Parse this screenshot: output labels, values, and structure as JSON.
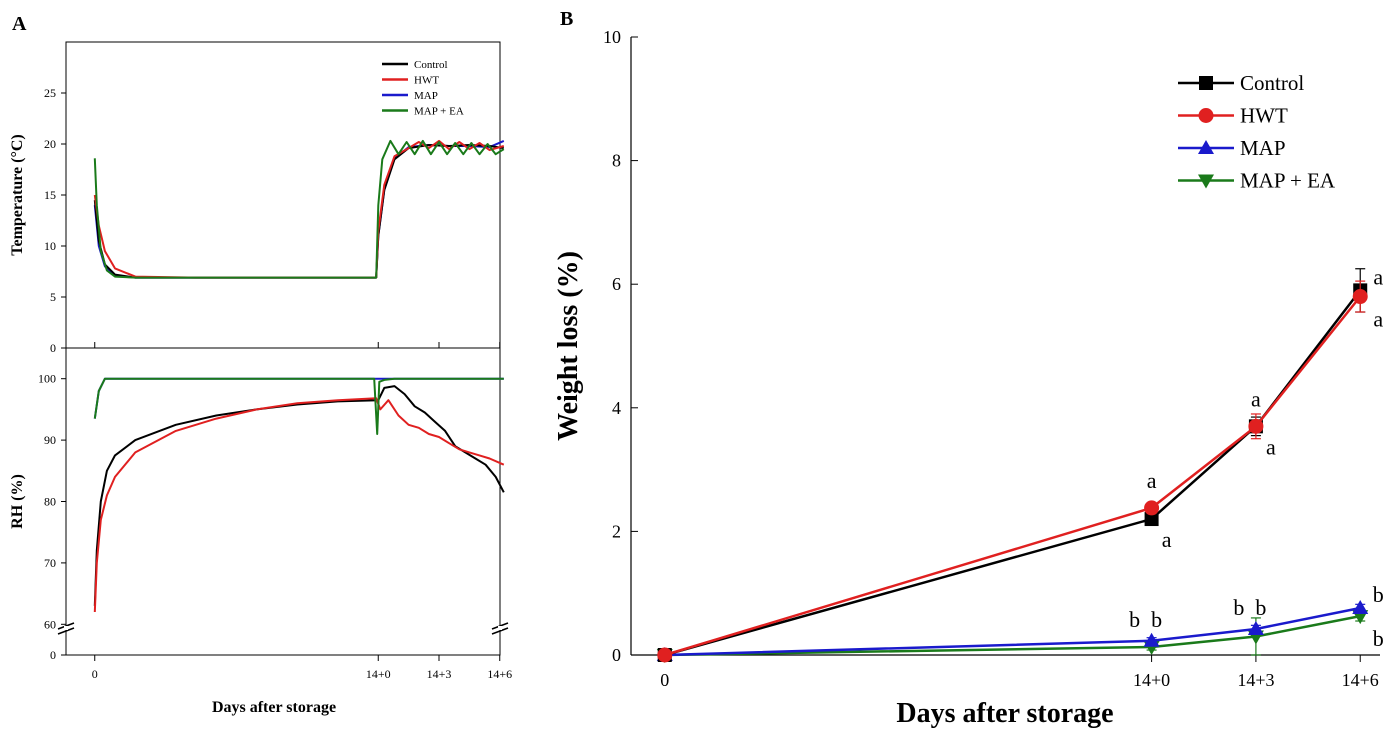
{
  "chart_data": [
    {
      "panel": "A",
      "type": "line",
      "xlabel": "Days after storage",
      "xticks": [
        "0",
        "14+0",
        "14+3",
        "14+6"
      ],
      "x_tick_values": [
        0,
        14,
        17,
        20
      ],
      "xlim": [
        -1,
        21
      ],
      "legend": {
        "placement": "top-right"
      },
      "series_names": [
        "Control",
        "HWT",
        "MAP",
        "MAP + EA"
      ],
      "colors": {
        "Control": "#000000",
        "HWT": "#e02020",
        "MAP": "#1a1acc",
        "MAP + EA": "#1a7a1a"
      },
      "subplots": [
        {
          "ylabel": "Temperature (°C)",
          "ylim": [
            0,
            30
          ],
          "yticks": [
            "0",
            "5",
            "10",
            "15",
            "20",
            "25"
          ],
          "ytick_values": [
            0,
            5,
            10,
            15,
            20,
            25
          ],
          "series": [
            {
              "name": "Control",
              "x": [
                0,
                0.2,
                0.5,
                1,
                2,
                5,
                10,
                13.9,
                14,
                14.3,
                14.8,
                15.5,
                16.5,
                17.5,
                18.5,
                19.5,
                20.2
              ],
              "y": [
                14.5,
                10.5,
                8.2,
                7.2,
                6.9,
                6.9,
                6.9,
                6.9,
                11.0,
                15.5,
                18.5,
                19.6,
                19.9,
                19.8,
                19.9,
                19.8,
                19.6
              ]
            },
            {
              "name": "HWT",
              "x": [
                0,
                0.2,
                0.5,
                1,
                2,
                5,
                10,
                13.9,
                14,
                14.3,
                14.8,
                15.5,
                16.0,
                16.5,
                17.0,
                17.5,
                18.0,
                18.5,
                19.0,
                19.5,
                20.2
              ],
              "y": [
                15.0,
                12.0,
                9.5,
                7.8,
                7.0,
                6.9,
                6.9,
                6.9,
                11.5,
                16.0,
                18.8,
                19.6,
                20.2,
                19.6,
                20.3,
                19.5,
                20.2,
                19.5,
                20.1,
                19.4,
                19.8
              ]
            },
            {
              "name": "MAP",
              "x": [
                0,
                0.2,
                0.5,
                1,
                2,
                5,
                10,
                13.9,
                14,
                14.3,
                14.8,
                15.5,
                16.5,
                17.5,
                18.5,
                19.5,
                20.2
              ],
              "y": [
                14.0,
                10.0,
                8.0,
                7.1,
                6.9,
                6.9,
                6.9,
                6.9,
                11.0,
                15.5,
                18.6,
                19.7,
                19.9,
                19.8,
                19.8,
                19.7,
                20.3
              ]
            },
            {
              "name": "MAP + EA",
              "x": [
                0,
                0.1,
                0.3,
                0.6,
                1,
                2,
                5,
                10,
                13.9,
                14,
                14.2,
                14.6,
                15.0,
                15.4,
                15.8,
                16.2,
                16.6,
                17.0,
                17.4,
                17.8,
                18.2,
                18.6,
                19.0,
                19.4,
                19.8,
                20.2
              ],
              "y": [
                18.6,
                14.0,
                9.5,
                7.6,
                7.0,
                6.9,
                6.9,
                6.9,
                6.9,
                14.0,
                18.5,
                20.3,
                19.0,
                20.2,
                19.0,
                20.3,
                19.0,
                20.2,
                19.0,
                20.1,
                19.0,
                20.1,
                19.0,
                20.0,
                19.0,
                19.5
              ]
            }
          ]
        },
        {
          "ylabel": "RH (%)",
          "ylim": [
            55,
            105
          ],
          "yticks": [
            "0",
            "60",
            "70",
            "80",
            "90",
            "100"
          ],
          "ytick_values": [
            55,
            60,
            70,
            80,
            90,
            100
          ],
          "axis_break": true,
          "series": [
            {
              "name": "Control",
              "x": [
                0,
                0.1,
                0.3,
                0.6,
                1,
                2,
                4,
                6,
                8,
                10,
                12,
                14,
                14.3,
                14.8,
                15.3,
                15.8,
                16.3,
                16.8,
                17.3,
                17.8,
                18.3,
                18.8,
                19.3,
                19.8,
                20.2
              ],
              "y": [
                63,
                72,
                80,
                85,
                87.5,
                90,
                92.5,
                94,
                95,
                95.8,
                96.3,
                96.5,
                98.5,
                98.8,
                97.5,
                95.5,
                94.5,
                93,
                91.5,
                89,
                88,
                87,
                86,
                84,
                81.5
              ]
            },
            {
              "name": "HWT",
              "x": [
                0,
                0.1,
                0.3,
                0.6,
                1,
                2,
                4,
                6,
                8,
                10,
                12,
                13.9,
                14.1,
                14.5,
                15.0,
                15.5,
                16.0,
                16.5,
                17.0,
                17.5,
                18.0,
                18.5,
                19.0,
                19.5,
                20.2
              ],
              "y": [
                62,
                70,
                77,
                81,
                84,
                88,
                91.5,
                93.5,
                95,
                96,
                96.5,
                96.8,
                95,
                96.5,
                94,
                92.5,
                92,
                91,
                90.5,
                89.5,
                88.5,
                88,
                87.5,
                87,
                86
              ]
            },
            {
              "name": "MAP",
              "x": [
                0,
                0.2,
                0.5,
                1,
                14,
                20.2
              ],
              "y": [
                93.5,
                98,
                100,
                100,
                100,
                100
              ]
            },
            {
              "name": "MAP + EA",
              "x": [
                0,
                0.2,
                0.5,
                1,
                13.8,
                13.95,
                14.05,
                14.3,
                14.8,
                20.2
              ],
              "y": [
                93.5,
                98,
                100,
                100,
                100,
                91,
                99.5,
                99.8,
                100,
                100
              ]
            }
          ]
        }
      ]
    },
    {
      "panel": "B",
      "type": "line",
      "xlabel": "Days after storage",
      "ylabel": "Weight loss (%)",
      "categories": [
        "0",
        "14+0",
        "14+3",
        "14+6"
      ],
      "x_positions": [
        0,
        14,
        17,
        20
      ],
      "xlim": [
        -1,
        21
      ],
      "ylim": [
        0,
        10
      ],
      "yticks": [
        "0",
        "2",
        "4",
        "6",
        "8",
        "10"
      ],
      "ytick_values": [
        0,
        2,
        4,
        6,
        8,
        10
      ],
      "legend": {
        "placement": "top-right"
      },
      "series": [
        {
          "name": "Control",
          "color": "#000000",
          "marker": "square",
          "values": [
            0,
            2.2,
            3.7,
            5.9
          ],
          "errors": [
            0,
            0.05,
            0.15,
            0.35
          ]
        },
        {
          "name": "HWT",
          "color": "#e02020",
          "marker": "circle",
          "values": [
            0,
            2.38,
            3.7,
            5.8
          ],
          "errors": [
            0,
            0.05,
            0.2,
            0.25
          ]
        },
        {
          "name": "MAP",
          "color": "#1a1acc",
          "marker": "triangle-up",
          "values": [
            0,
            0.23,
            0.42,
            0.76
          ],
          "errors": [
            0.08,
            0.05,
            0.06,
            0.06
          ]
        },
        {
          "name": "MAP + EA",
          "color": "#1a7a1a",
          "marker": "triangle-down",
          "values": [
            0,
            0.13,
            0.3,
            0.63
          ],
          "errors": [
            0,
            0.05,
            0.3,
            0.08
          ]
        }
      ],
      "annotations": [
        {
          "text": "a",
          "at": [
            14,
            2.38
          ],
          "side": "above"
        },
        {
          "text": "a",
          "at": [
            14,
            2.2
          ],
          "side": "below-right"
        },
        {
          "text": "a",
          "at": [
            17,
            3.7
          ],
          "side": "above"
        },
        {
          "text": "a",
          "at": [
            17,
            3.7
          ],
          "side": "below-right"
        },
        {
          "text": "a",
          "at": [
            20,
            5.9
          ],
          "side": "right-upper"
        },
        {
          "text": "a",
          "at": [
            20,
            5.8
          ],
          "side": "right-lower"
        },
        {
          "text": "b",
          "at": [
            14,
            0.23
          ],
          "side": "above-left"
        },
        {
          "text": "b",
          "at": [
            14,
            0.23
          ],
          "side": "above-right"
        },
        {
          "text": "b",
          "at": [
            17,
            0.42
          ],
          "side": "above-left"
        },
        {
          "text": "b",
          "at": [
            17,
            0.42
          ],
          "side": "above-right"
        },
        {
          "text": "b",
          "at": [
            20,
            0.76
          ],
          "side": "right-upper"
        },
        {
          "text": "b",
          "at": [
            20,
            0.63
          ],
          "side": "right-lower"
        }
      ]
    }
  ]
}
